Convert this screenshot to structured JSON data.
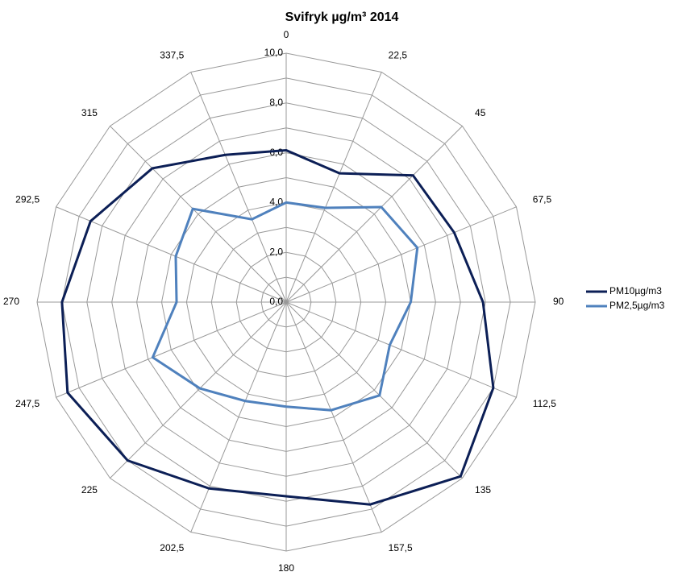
{
  "chart_data": {
    "type": "radar",
    "title": "Svifryk µg/m³ 2014",
    "categories": [
      "0",
      "22,5",
      "45",
      "67,5",
      "90",
      "112,5",
      "135",
      "157,5",
      "180",
      "202,5",
      "225",
      "247,5",
      "270",
      "292,5",
      "315",
      "337,5"
    ],
    "series": [
      {
        "name": "PM10µg/m3",
        "color": "#0c1f56",
        "values": [
          6.1,
          5.6,
          7.2,
          7.3,
          7.9,
          9.0,
          9.9,
          8.8,
          7.8,
          8.1,
          9.0,
          9.5,
          9.0,
          8.5,
          7.6,
          6.4
        ]
      },
      {
        "name": "PM2,5µg/m3",
        "color": "#4f81bd",
        "values": [
          4.0,
          4.1,
          5.4,
          5.7,
          5.0,
          4.5,
          5.3,
          4.7,
          4.2,
          4.3,
          4.9,
          5.8,
          4.4,
          4.8,
          5.3,
          3.6
        ]
      }
    ],
    "ylim": [
      0,
      10
    ],
    "yticks": [
      {
        "value": 0,
        "label": "0,0"
      },
      {
        "value": 2,
        "label": "2,0"
      },
      {
        "value": 4,
        "label": "4,0"
      },
      {
        "value": 6,
        "label": "6,0"
      },
      {
        "value": 8,
        "label": "8,0"
      },
      {
        "value": 10,
        "label": "10,0"
      }
    ],
    "minor_yticks": [
      1,
      3,
      5,
      7,
      9
    ],
    "grid": true,
    "legend": "right"
  }
}
